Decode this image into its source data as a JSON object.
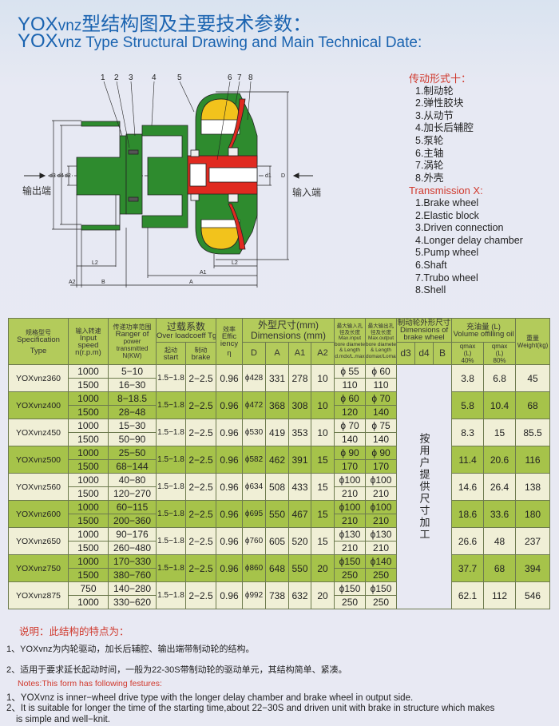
{
  "title": {
    "cn_prefix": "YOX",
    "cn_suffix_model": "vnz",
    "cn_text": "型结构图及主要技术参数：",
    "en_prefix": "YOX",
    "en_model": "vnz",
    "en_text": " Type Structural Drawing and Main Technical Date:"
  },
  "colors": {
    "title_blue": "#1a63b0",
    "accent_red": "#d0392d",
    "table_green": "#a6c34a",
    "table_light": "#f0efd6",
    "housing_green": "#2e8b2e",
    "shaft_red": "#e02a20",
    "oil_yellow": "#f2c31c"
  },
  "diagram": {
    "part_numbers": [
      "1",
      "2",
      "3",
      "4",
      "5",
      "6",
      "7",
      "8"
    ],
    "output_end": "输出端",
    "input_end": "输入端",
    "dim_labels": {
      "d3": "d3",
      "d4": "d4",
      "d2": "d2",
      "d1": "d1",
      "D": "D",
      "L2_left": "L2",
      "L2_right": "L2",
      "A1": "A1",
      "A": "A",
      "A2": "A2",
      "B": "B"
    }
  },
  "legend": {
    "cn_heading": "传动形式十：",
    "cn_items": [
      "1.制动轮",
      "2.弹性胶块",
      "3.从动节",
      "4.加长后辅腔",
      "5.泵轮",
      "6.主轴",
      "7.涡轮",
      "8.外壳"
    ],
    "en_heading": "Transmission X:",
    "en_items": [
      "1.Brake wheel",
      "2.Elastic block",
      "3.Driven connection",
      "4.Longer delay chamber",
      "5.Pump wheel",
      "6.Shaft",
      "7.Trubo wheel",
      "8.Shell"
    ]
  },
  "table": {
    "headers": {
      "spec_cn": "规格型号",
      "spec_en1": "Specification",
      "spec_en2": "Type",
      "speed_cn": "输入转速",
      "speed_en1": "Input",
      "speed_en2": "speed",
      "speed_en3": "n(r.p.m)",
      "power_cn": "传递功率范围",
      "power_en1": "Ranger of",
      "power_en2": "power",
      "power_en3": "transmitted",
      "power_en4": "N(KW)",
      "overload_cn": "过载系数",
      "overload_en": "Over loadcoeff Tg",
      "start_cn": "起动",
      "start_en": "start",
      "brake_cn": "制动",
      "brake_en": "brake",
      "eff_cn": "效率",
      "eff_en1": "Effic",
      "eff_en2": "iency",
      "eff_sym": "η",
      "dims_cn": "外型尺寸(mm)",
      "dims_en": "Dimensions (mm)",
      "D": "D",
      "A": "A",
      "A1": "A1",
      "A2": "A2",
      "maxin_cn": "最大输入孔径及长度",
      "maxin_en1": "Max.input",
      "maxin_en2": "bore diameter",
      "maxin_en3": "& Length",
      "maxin_en4": "d.mdx/L.max",
      "maxout_cn": "最大输出孔径及长度",
      "maxout_en1": "Max.output",
      "maxout_en2": "bore diameter",
      "maxout_en3": "& Length",
      "maxout_en4": "domax/Lomax",
      "brakewheel_cn": "制动轮外形尺寸",
      "brakewheel_en1": "Dimensions of",
      "brakewheel_en2": "brake wheel",
      "d3": "d3",
      "d4": "d4",
      "B": "B",
      "vol_cn": "充油量 (L)",
      "vol_en": "Volume offilling oil",
      "q40_1": "qmax",
      "q40_2": "(L)",
      "q40_3": "40%",
      "q80_1": "qmax",
      "q80_2": "(L)",
      "q80_3": "80%",
      "weight_cn": "重量",
      "weight_en": "Weight(kg)"
    },
    "brake_wheel_note": "按用户提供尺寸加工",
    "rows": [
      {
        "spec": "YOXvnz360",
        "speed": [
          "1000",
          "1500"
        ],
        "power": [
          "5−10",
          "16−30"
        ],
        "start": "1.5−1.8",
        "brake": "2−2.5",
        "eff": "0.96",
        "D": "ϕ428",
        "A": "331",
        "A1": "278",
        "A2": "10",
        "in": [
          "ϕ 55",
          "110"
        ],
        "out": [
          "ϕ 60",
          "110"
        ],
        "q40": "3.8",
        "q80": "6.8",
        "weight": "45"
      },
      {
        "spec": "YOXvnz400",
        "speed": [
          "1000",
          "1500"
        ],
        "power": [
          "8−18.5",
          "28−48"
        ],
        "start": "1.5−1.8",
        "brake": "2−2.5",
        "eff": "0.96",
        "D": "ϕ472",
        "A": "368",
        "A1": "308",
        "A2": "10",
        "in": [
          "ϕ 60",
          "120"
        ],
        "out": [
          "ϕ 70",
          "140"
        ],
        "q40": "5.8",
        "q80": "10.4",
        "weight": "68"
      },
      {
        "spec": "YOXvnz450",
        "speed": [
          "1000",
          "1500"
        ],
        "power": [
          "15−30",
          "50−90"
        ],
        "start": "1.5−1.8",
        "brake": "2−2.5",
        "eff": "0.96",
        "D": "ϕ530",
        "A": "419",
        "A1": "353",
        "A2": "10",
        "in": [
          "ϕ 70",
          "140"
        ],
        "out": [
          "ϕ 75",
          "140"
        ],
        "q40": "8.3",
        "q80": "15",
        "weight": "85.5"
      },
      {
        "spec": "YOXvnz500",
        "speed": [
          "1000",
          "1500"
        ],
        "power": [
          "25−50",
          "68−144"
        ],
        "start": "1.5−1.8",
        "brake": "2−2.5",
        "eff": "0.96",
        "D": "ϕ582",
        "A": "462",
        "A1": "391",
        "A2": "15",
        "in": [
          "ϕ 90",
          "170"
        ],
        "out": [
          "ϕ 90",
          "170"
        ],
        "q40": "11.4",
        "q80": "20.6",
        "weight": "116"
      },
      {
        "spec": "YOXvnz560",
        "speed": [
          "1000",
          "1500"
        ],
        "power": [
          "40−80",
          "120−270"
        ],
        "start": "1.5−1.8",
        "brake": "2−2.5",
        "eff": "0.96",
        "D": "ϕ634",
        "A": "508",
        "A1": "433",
        "A2": "15",
        "in": [
          "ϕ100",
          "210"
        ],
        "out": [
          "ϕ100",
          "210"
        ],
        "q40": "14.6",
        "q80": "26.4",
        "weight": "138"
      },
      {
        "spec": "YOXvnz600",
        "speed": [
          "1000",
          "1500"
        ],
        "power": [
          "60−115",
          "200−360"
        ],
        "start": "1.5−1.8",
        "brake": "2−2.5",
        "eff": "0.96",
        "D": "ϕ695",
        "A": "550",
        "A1": "467",
        "A2": "15",
        "in": [
          "ϕ100",
          "210"
        ],
        "out": [
          "ϕ100",
          "210"
        ],
        "q40": "18.6",
        "q80": "33.6",
        "weight": "180"
      },
      {
        "spec": "YOXvnz650",
        "speed": [
          "1000",
          "1500"
        ],
        "power": [
          "90−176",
          "260−480"
        ],
        "start": "1.5−1.8",
        "brake": "2−2.5",
        "eff": "0.96",
        "D": "ϕ760",
        "A": "605",
        "A1": "520",
        "A2": "15",
        "in": [
          "ϕ130",
          "210"
        ],
        "out": [
          "ϕ130",
          "210"
        ],
        "q40": "26.6",
        "q80": "48",
        "weight": "237"
      },
      {
        "spec": "YOXvnz750",
        "speed": [
          "1000",
          "1500"
        ],
        "power": [
          "170−330",
          "380−760"
        ],
        "start": "1.5−1.8",
        "brake": "2−2.5",
        "eff": "0.96",
        "D": "ϕ860",
        "A": "648",
        "A1": "550",
        "A2": "20",
        "in": [
          "ϕ150",
          "250"
        ],
        "out": [
          "ϕ140",
          "250"
        ],
        "q40": "37.7",
        "q80": "68",
        "weight": "394"
      },
      {
        "spec": "YOXvnz875",
        "speed": [
          "750",
          "1000"
        ],
        "power": [
          "140−280",
          "330−620"
        ],
        "start": "1.5−1.8",
        "brake": "2−2.5",
        "eff": "0.96",
        "D": "ϕ992",
        "A": "738",
        "A1": "632",
        "A2": "20",
        "in": [
          "ϕ150",
          "250"
        ],
        "out": [
          "ϕ150",
          "250"
        ],
        "q40": "62.1",
        "q80": "112",
        "weight": "546"
      }
    ]
  },
  "notes": {
    "cn_heading": "说明：此结构的特点为：",
    "cn_items": [
      "1、YOXvnz为内轮驱动，加长后辅腔、输出端带制动轮的结构。",
      "2、适用于要求延长起动时间，一般为22-30S带制动轮的驱动单元，其结构简单、紧凑。"
    ],
    "en_heading": "Notes:This form has following festures:",
    "en_item1": "1、YOXvnz is inner−wheel drive type with the longer delay chamber and brake wheel in output side.",
    "en_item2a": "2、It is suitable for longer the time of the starting time,about 22−30S and driven unit with brake in structure which makes",
    "en_item2b": "is simple and well−knit."
  }
}
